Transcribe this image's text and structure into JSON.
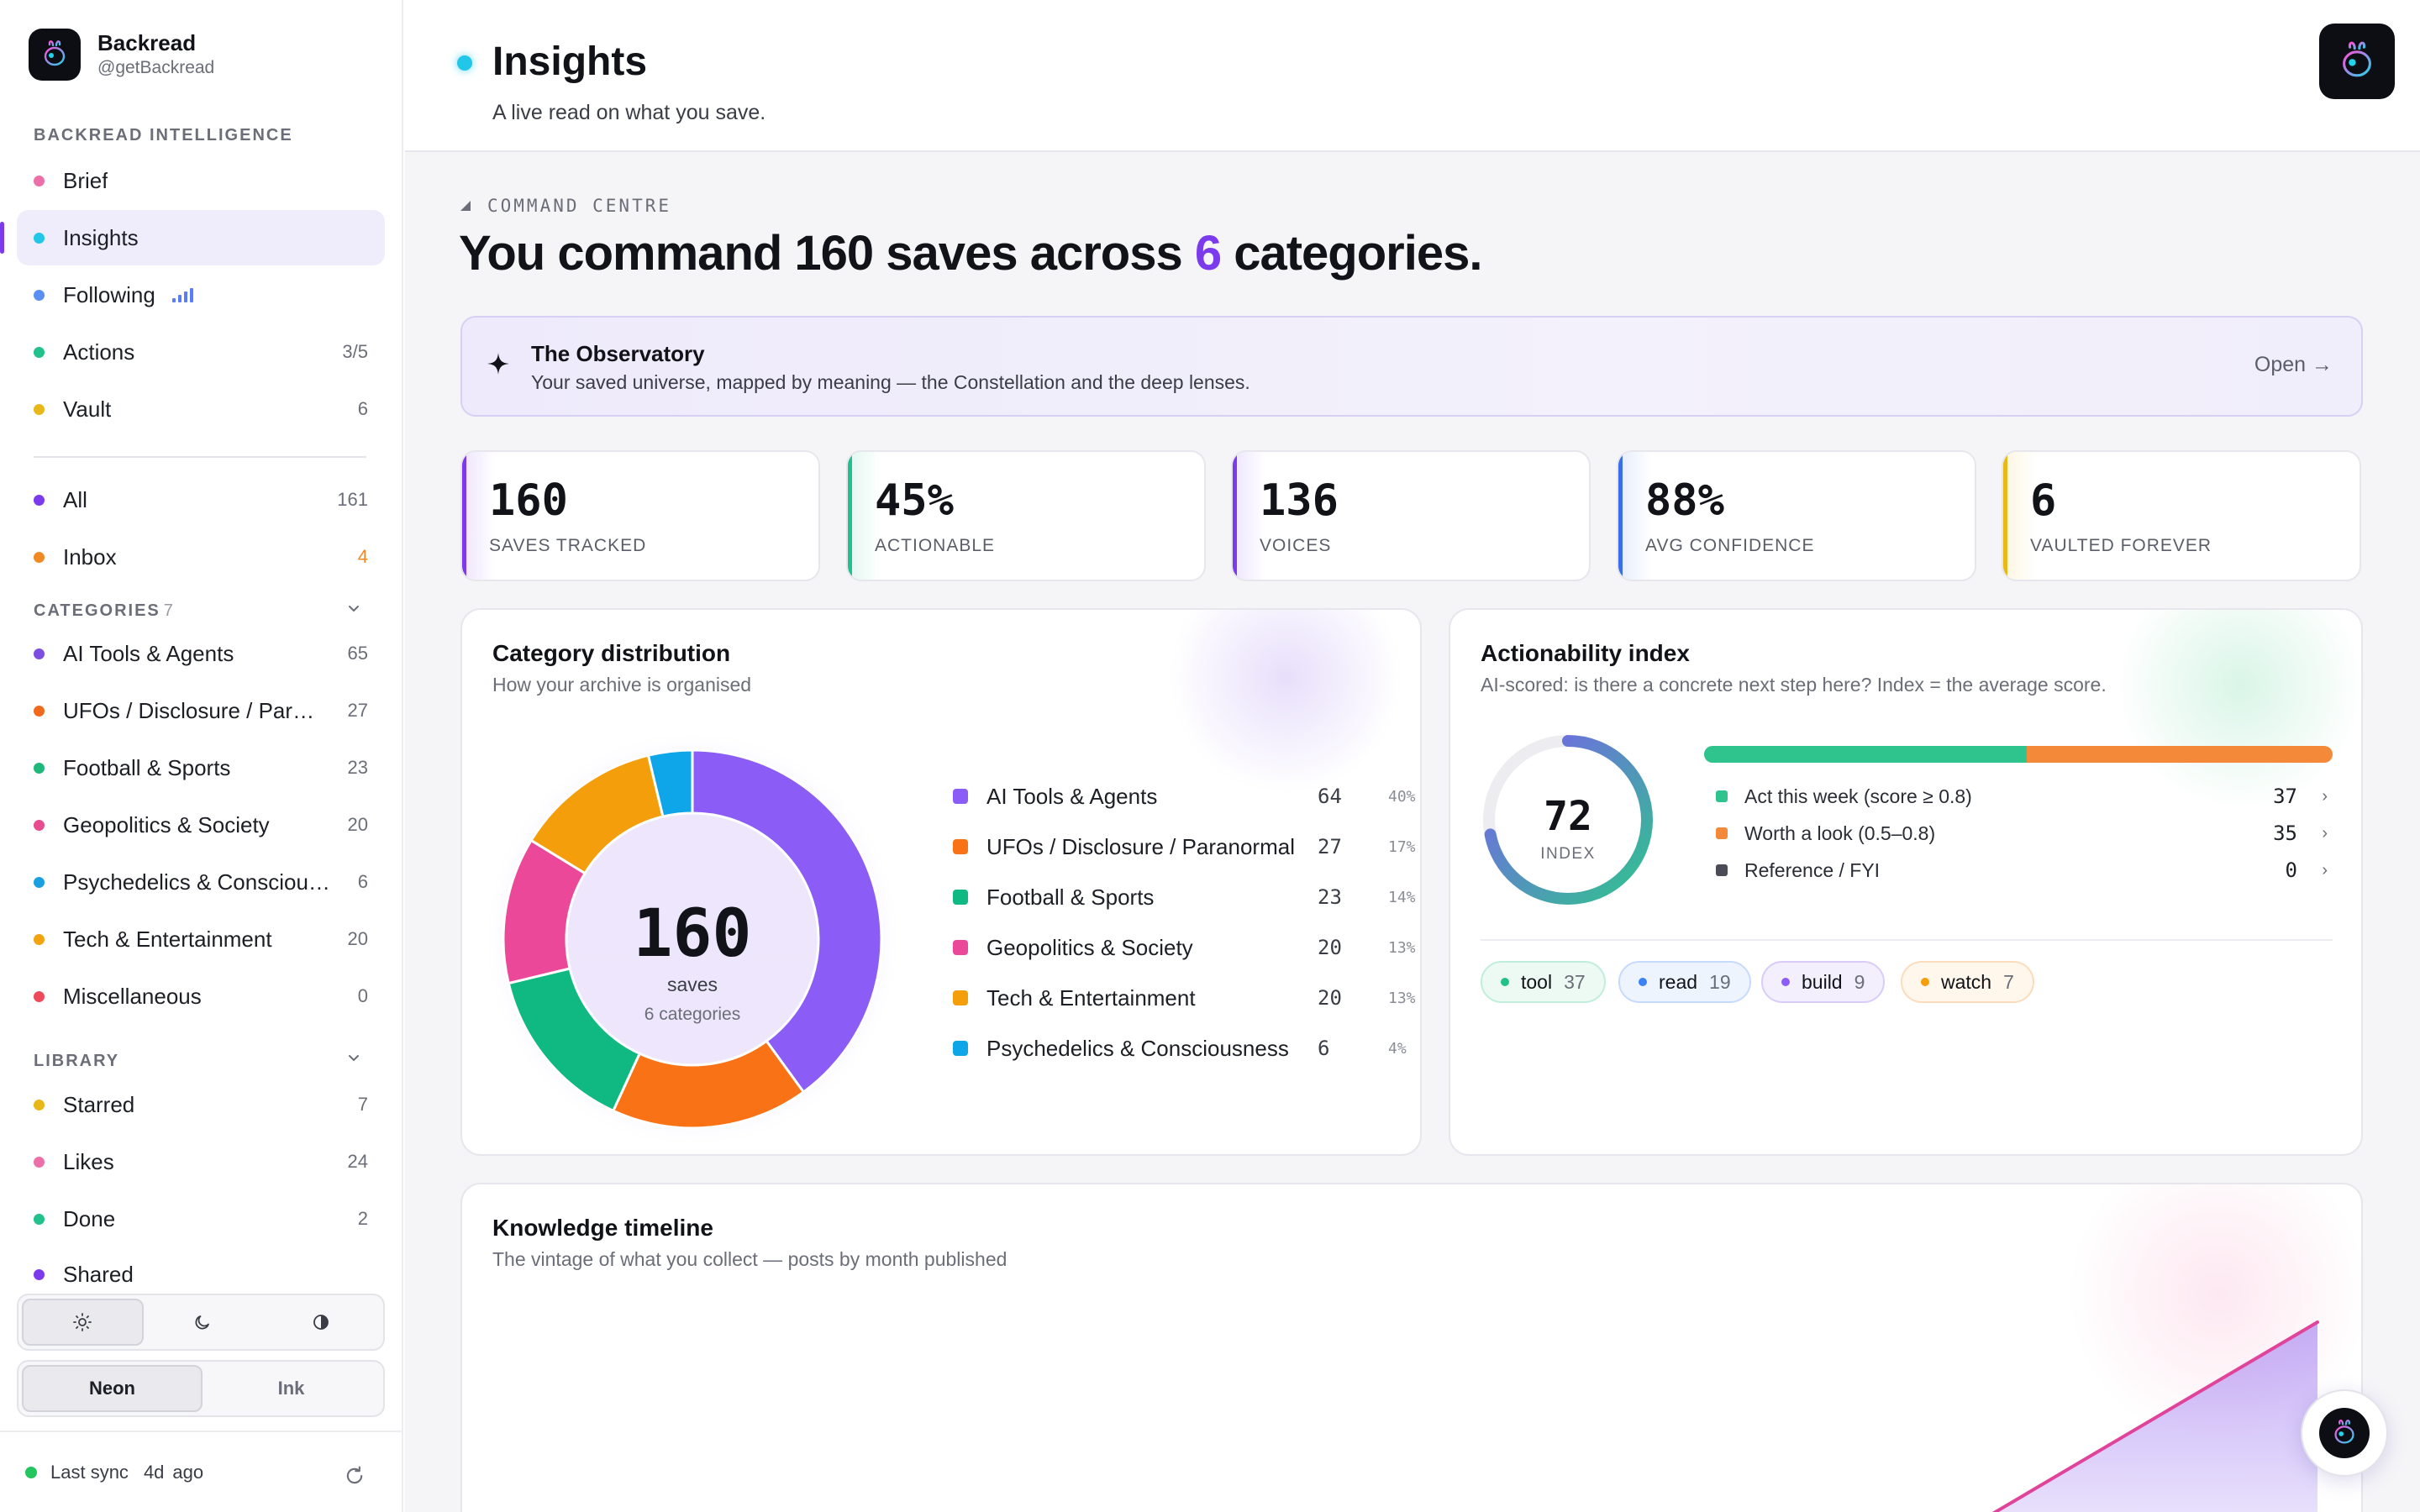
{
  "brand": {
    "name": "Backread",
    "handle": "@getBackread"
  },
  "sidebar": {
    "intelligence_label": "BACKREAD INTELLIGENCE",
    "intelligence_items": [
      {
        "label": "Brief",
        "color": "#ec6fa7",
        "count": ""
      },
      {
        "label": "Insights",
        "color": "#22c6e8",
        "count": "",
        "active": true
      },
      {
        "label": "Following",
        "color": "#5b8ef2",
        "count": ""
      },
      {
        "label": "Actions",
        "color": "#22c08a",
        "count": "3/5"
      },
      {
        "label": "Vault",
        "color": "#e8b819",
        "count": "6"
      }
    ],
    "views": [
      {
        "label": "All",
        "color": "#7c3aed",
        "count": "161"
      },
      {
        "label": "Inbox",
        "color": "#f08a24",
        "count": "4"
      }
    ],
    "categories_label": "CATEGORIES",
    "categories_count": "7",
    "categories": [
      {
        "label": "AI Tools & Agents",
        "color": "#7c4fe0",
        "count": "65"
      },
      {
        "label": "UFOs / Disclosure / Paranormal",
        "color": "#f06a1e",
        "count": "27"
      },
      {
        "label": "Football & Sports",
        "color": "#1fb87a",
        "count": "23"
      },
      {
        "label": "Geopolitics & Society",
        "color": "#e64c8e",
        "count": "20"
      },
      {
        "label": "Psychedelics & Consciousness",
        "color": "#1aa0e0",
        "count": "6"
      },
      {
        "label": "Tech & Entertainment",
        "color": "#f2a30f",
        "count": "20"
      },
      {
        "label": "Miscellaneous",
        "color": "#ef4a5c",
        "count": "0"
      }
    ],
    "library_label": "LIBRARY",
    "library": [
      {
        "label": "Starred",
        "color": "#e8b819",
        "count": "7"
      },
      {
        "label": "Likes",
        "color": "#ec6fa7",
        "count": "24"
      },
      {
        "label": "Done",
        "color": "#22c08a",
        "count": "2"
      },
      {
        "label": "Shared",
        "color": "#7c3aed",
        "count": ""
      }
    ],
    "skins": {
      "neon": "Neon",
      "ink": "Ink"
    },
    "sync": {
      "label": "Last sync",
      "value": "4d",
      "suffix": "ago"
    }
  },
  "header": {
    "title": "Insights",
    "subtitle": "A live read on what you save."
  },
  "command": {
    "label": "COMMAND CENTRE",
    "headline_pre": "You command 160 saves across ",
    "headline_num": "6",
    "headline_post": " categories."
  },
  "observatory": {
    "title": "The Observatory",
    "description": "Your saved universe, mapped by meaning — the Constellation and the deep lenses.",
    "open_label": "Open →"
  },
  "stats": [
    {
      "value": "160",
      "label": "SAVES TRACKED",
      "color": "#7c3aed"
    },
    {
      "value": "45%",
      "label": "ACTIONABLE",
      "color": "#22c08a"
    },
    {
      "value": "136",
      "label": "VOICES",
      "color": "#7c3aed"
    },
    {
      "value": "88%",
      "label": "AVG CONFIDENCE",
      "color": "#3b6fe8"
    },
    {
      "value": "6",
      "label": "VAULTED FOREVER",
      "color": "#e8b819"
    }
  ],
  "distribution": {
    "title": "Category distribution",
    "subtitle": "How your archive is organised",
    "center_value": "160",
    "center_label": "saves",
    "center_sub": "6 categories",
    "legend": [
      {
        "label": "AI Tools & Agents",
        "value": "64",
        "pct": "40%",
        "color": "#8b5cf6"
      },
      {
        "label": "UFOs / Disclosure / Paranormal",
        "value": "27",
        "pct": "17%",
        "color": "#f97316"
      },
      {
        "label": "Football & Sports",
        "value": "23",
        "pct": "14%",
        "color": "#10b981"
      },
      {
        "label": "Geopolitics & Society",
        "value": "20",
        "pct": "13%",
        "color": "#ec4899"
      },
      {
        "label": "Tech & Entertainment",
        "value": "20",
        "pct": "13%",
        "color": "#f59e0b"
      },
      {
        "label": "Psychedelics & Consciousness",
        "value": "6",
        "pct": "4%",
        "color": "#0ea5e9"
      }
    ]
  },
  "chart_data": {
    "type": "pie",
    "categories": [
      "AI Tools & Agents",
      "UFOs / Disclosure / Paranormal",
      "Football & Sports",
      "Geopolitics & Society",
      "Tech & Entertainment",
      "Psychedelics & Consciousness"
    ],
    "values": [
      64,
      27,
      23,
      20,
      20,
      6
    ],
    "colors": [
      "#8b5cf6",
      "#f97316",
      "#10b981",
      "#ec4899",
      "#f59e0b",
      "#0ea5e9"
    ],
    "title": "Category distribution",
    "donut": true
  },
  "actionability": {
    "title": "Actionability index",
    "subtitle": "AI-scored: is there a concrete next step here? Index = the average score.",
    "index_value": "72",
    "index_fraction": 0.72,
    "index_label": "INDEX",
    "bar_split": [
      37,
      35,
      0
    ],
    "rows": [
      {
        "label": "Act this week (score ≥ 0.8)",
        "value": "37",
        "color": "#2fc48d"
      },
      {
        "label": "Worth a look (0.5–0.8)",
        "value": "35",
        "color": "#f5893a"
      },
      {
        "label": "Reference / FYI",
        "value": "0",
        "color": "#4a4d57"
      }
    ],
    "tags": [
      {
        "label": "tool",
        "count": "37",
        "color": "#22c08a",
        "bg": "#edfaf4",
        "border": "#bfeedb"
      },
      {
        "label": "read",
        "count": "19",
        "color": "#3b82f6",
        "bg": "#eef4fe",
        "border": "#c6dafb"
      },
      {
        "label": "build",
        "count": "9",
        "color": "#8b5cf6",
        "bg": "#f3effd",
        "border": "#d9ccfa"
      },
      {
        "label": "watch",
        "count": "7",
        "color": "#f59e0b",
        "bg": "#fff6ec",
        "border": "#fbdcbc"
      }
    ]
  },
  "timeline": {
    "title": "Knowledge timeline",
    "subtitle": "The vintage of what you collect — posts by month published"
  }
}
